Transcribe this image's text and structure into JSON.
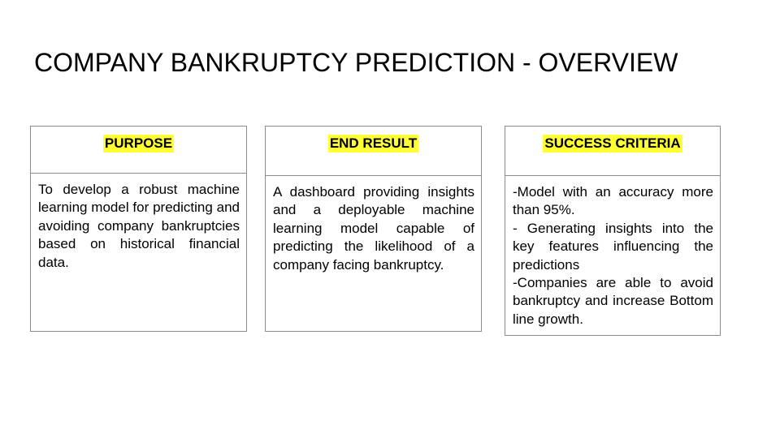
{
  "title": "COMPANY BANKRUPTCY PREDICTION - OVERVIEW",
  "highlight_color": "#ffff33",
  "cards": [
    {
      "heading": "PURPOSE",
      "lines": [
        "To develop a robust machine learning model for predicting and avoiding company bankruptcies based on historical financial data."
      ]
    },
    {
      "heading": "END RESULT",
      "lines": [
        "A dashboard providing insights and a deployable machine learning model capable of predicting the likelihood of a company facing bankruptcy."
      ]
    },
    {
      "heading": "SUCCESS CRITERIA",
      "lines": [
        "-Model with an accuracy more than 95%.",
        "- Generating insights into the key features influencing the predictions",
        "-Companies are able to avoid bankruptcy and increase Bottom line growth."
      ]
    }
  ]
}
